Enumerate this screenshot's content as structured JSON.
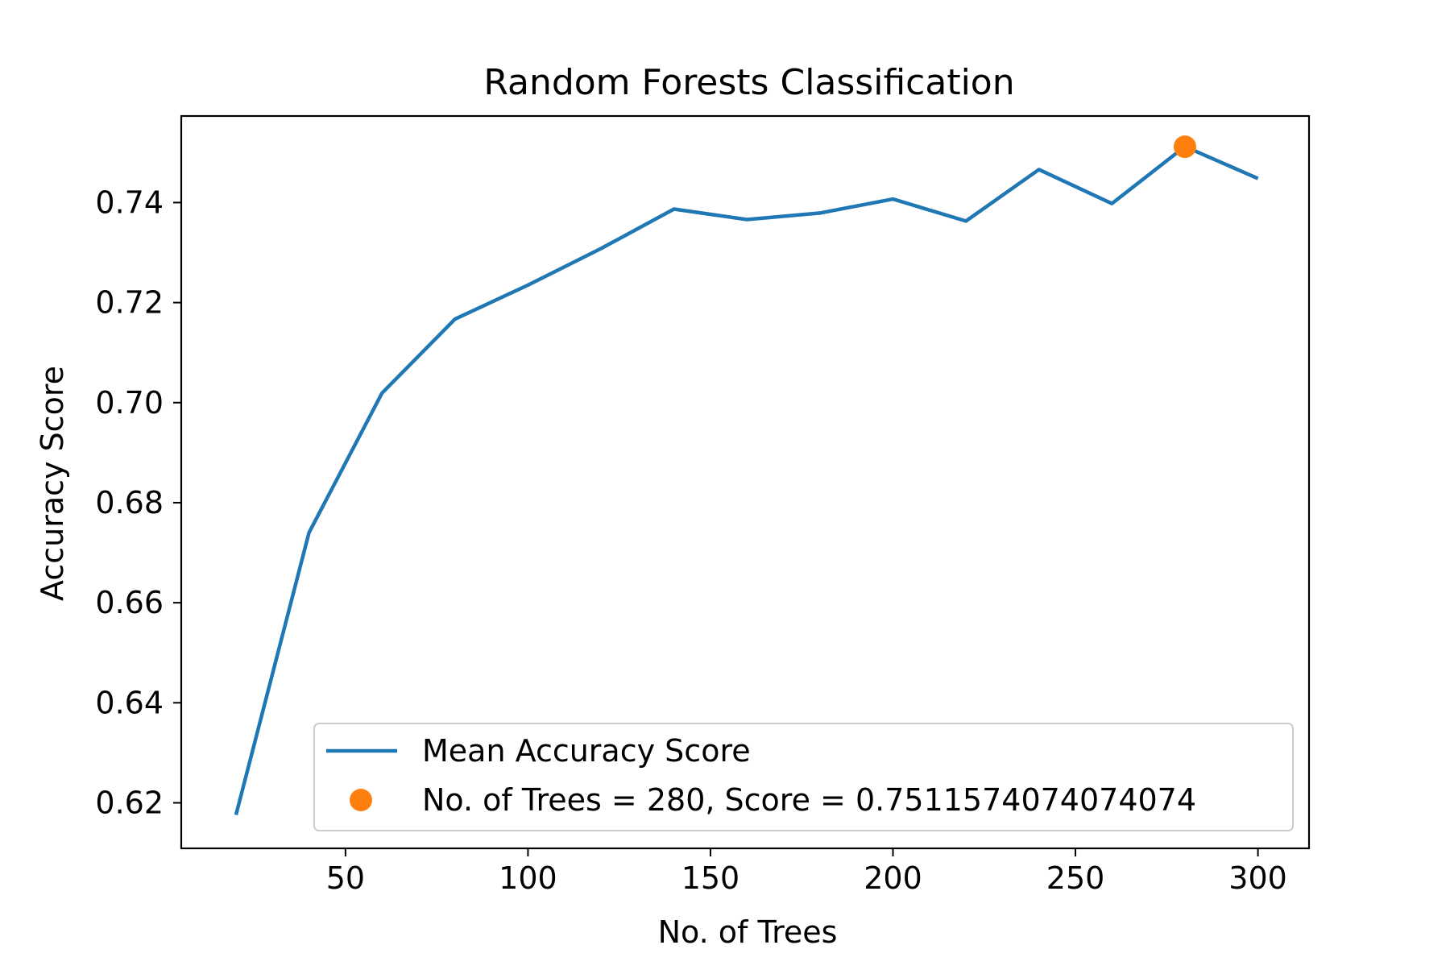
{
  "chart_data": {
    "type": "line",
    "title": "Random Forests Classification",
    "xlabel": "No. of Trees",
    "ylabel": "Accuracy Score",
    "xlim": [
      5,
      314
    ],
    "ylim": [
      0.6109,
      0.7573
    ],
    "xticks": [
      {
        "value": 50,
        "label": "50"
      },
      {
        "value": 100,
        "label": "100"
      },
      {
        "value": 150,
        "label": "150"
      },
      {
        "value": 200,
        "label": "200"
      },
      {
        "value": 250,
        "label": "250"
      },
      {
        "value": 300,
        "label": "300"
      }
    ],
    "yticks": [
      {
        "value": 0.62,
        "label": "0.62"
      },
      {
        "value": 0.64,
        "label": "0.64"
      },
      {
        "value": 0.66,
        "label": "0.66"
      },
      {
        "value": 0.68,
        "label": "0.68"
      },
      {
        "value": 0.7,
        "label": "0.70"
      },
      {
        "value": 0.72,
        "label": "0.72"
      },
      {
        "value": 0.74,
        "label": "0.74"
      }
    ],
    "grid": false,
    "legend_position": "lower-right",
    "series": [
      {
        "name": "Mean Accuracy Score",
        "kind": "line",
        "color": "#1f77b4",
        "x": [
          20,
          40,
          60,
          80,
          100,
          120,
          140,
          160,
          180,
          200,
          220,
          240,
          260,
          280,
          300
        ],
        "y": [
          0.6176,
          0.674,
          0.7019,
          0.7167,
          0.7235,
          0.7308,
          0.7387,
          0.7366,
          0.7379,
          0.7407,
          0.7363,
          0.7466,
          0.7398,
          0.7512,
          0.7448
        ]
      },
      {
        "name": "No. of Trees = 280, Score = 0.7511574074074074",
        "kind": "point",
        "color": "#ff7f0e",
        "x": [
          280
        ],
        "y": [
          0.7511574074074074
        ]
      }
    ]
  }
}
